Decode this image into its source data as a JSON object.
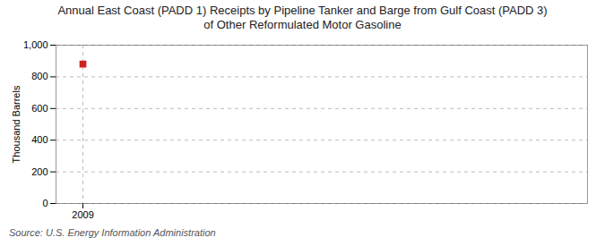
{
  "chart_data": {
    "type": "scatter",
    "title": "Annual East Coast (PADD 1) Receipts by Pipeline Tanker and Barge from Gulf Coast (PADD 3)\nof Other Reformulated Motor Gasoline",
    "ylabel": "Thousand Barrels",
    "source": "Source: U.S. Energy Information Administration",
    "x": [
      2009
    ],
    "values": [
      881
    ],
    "color": "#cc2222",
    "marker": "square",
    "xlim": [
      2008.6,
      2016.5
    ],
    "ylim": [
      0,
      1000
    ],
    "xticks": [
      2009
    ],
    "yticks": [
      0,
      200,
      400,
      600,
      800,
      {
        "value": 1000,
        "label": "1,000"
      }
    ],
    "grid": true
  }
}
